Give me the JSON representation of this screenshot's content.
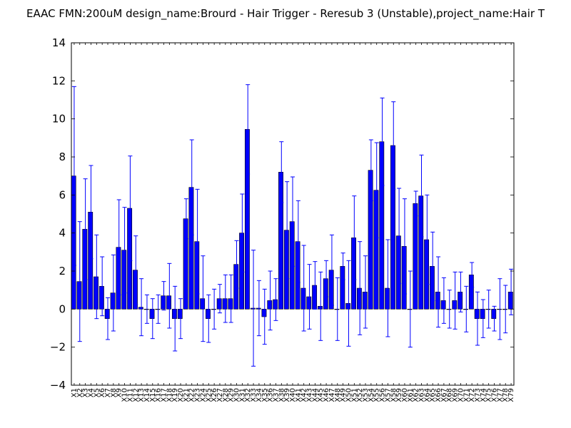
{
  "chart_data": {
    "type": "bar",
    "title": "EAAC  FMN:200uM  design_name:Brourd - Hair Trigger - Reresub 3 (Unstable),project_name:Hair T",
    "xlabel": "",
    "ylabel": "",
    "ylim": [
      -4,
      14
    ],
    "yticks": [
      -4,
      -2,
      0,
      2,
      4,
      6,
      8,
      10,
      12,
      14
    ],
    "grid": false,
    "legend": "none",
    "bar_color": "#0000ff",
    "error_color": "#0000ff",
    "categories": [
      "X1",
      "X2",
      "X3",
      "X4",
      "X5",
      "X6",
      "X7",
      "X8",
      "X9",
      "X10",
      "X11",
      "X12",
      "X13",
      "X14",
      "X15",
      "X16",
      "X17",
      "X18",
      "X19",
      "X20",
      "X21",
      "X22",
      "X23",
      "X24",
      "X25",
      "X26",
      "X27",
      "X28",
      "X29",
      "X30",
      "X31",
      "X32",
      "X33",
      "X34",
      "X35",
      "X36",
      "X37",
      "X38",
      "X39",
      "X40",
      "X41",
      "X42",
      "X43",
      "X44",
      "X45",
      "X46",
      "X47",
      "X48",
      "X49",
      "X50",
      "X51",
      "X52",
      "X53",
      "X54",
      "X55",
      "X56",
      "X57",
      "X58",
      "X59",
      "X60",
      "X61",
      "X62",
      "X63",
      "X64",
      "X65",
      "X66",
      "X67",
      "X68",
      "X69",
      "X70",
      "X71",
      "X72",
      "X73",
      "X74",
      "X75",
      "X76",
      "X77",
      "X78",
      "X79"
    ],
    "values": [
      7.0,
      1.45,
      4.2,
      5.1,
      1.7,
      1.2,
      -0.5,
      0.85,
      3.25,
      3.1,
      5.3,
      2.05,
      0.1,
      0.0,
      -0.5,
      0.0,
      0.7,
      0.7,
      -0.5,
      -0.5,
      4.75,
      6.4,
      3.55,
      0.55,
      -0.5,
      0.0,
      0.55,
      0.55,
      0.55,
      2.35,
      4.0,
      9.45,
      0.05,
      0.05,
      -0.4,
      0.45,
      0.5,
      7.2,
      4.15,
      4.6,
      3.55,
      1.1,
      0.65,
      1.25,
      0.15,
      1.6,
      2.05,
      0.0,
      2.25,
      0.3,
      3.75,
      1.1,
      0.9,
      7.3,
      6.25,
      8.8,
      1.1,
      8.6,
      3.85,
      3.3,
      0.0,
      5.55,
      5.95,
      3.65,
      2.25,
      0.9,
      0.45,
      0.0,
      0.45,
      0.9,
      0.0,
      1.8,
      -0.5,
      -0.5,
      0.0,
      -0.5,
      0.0,
      0.0,
      0.9
    ],
    "errors": [
      4.7,
      3.15,
      2.65,
      2.45,
      2.2,
      1.55,
      1.1,
      2.0,
      2.5,
      2.25,
      2.75,
      1.8,
      1.5,
      0.75,
      1.05,
      0.75,
      0.75,
      1.7,
      1.7,
      1.05,
      1.05,
      2.5,
      2.75,
      2.25,
      1.25,
      1.05,
      0.75,
      1.25,
      1.25,
      1.25,
      2.05,
      2.35,
      3.05,
      1.45,
      1.45,
      1.55,
      1.1,
      1.6,
      2.55,
      2.35,
      2.15,
      2.25,
      1.7,
      1.25,
      1.8,
      0.95,
      1.85,
      1.65,
      0.7,
      2.25,
      2.2,
      2.45,
      1.9,
      1.6,
      2.5,
      2.3,
      2.55,
      2.3,
      2.5,
      2.5,
      2.0,
      0.65,
      2.15,
      2.35,
      1.8,
      1.85,
      1.2,
      1.0,
      1.5,
      1.05,
      1.2,
      0.65,
      1.4,
      1.0,
      1.0,
      0.65,
      1.6,
      1.25,
      1.2
    ]
  }
}
